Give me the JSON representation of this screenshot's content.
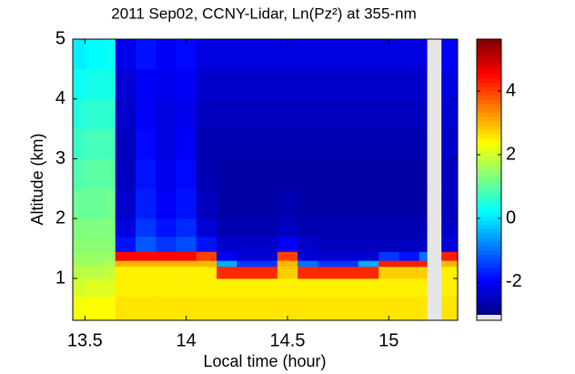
{
  "chart_data": {
    "type": "heatmap",
    "title": "2011 Sep02, CCNY-Lidar, Ln(Pz²) at 355-nm",
    "xlabel": "Local time (hour)",
    "ylabel": "Altitude (km)",
    "x_bins": [
      13.44,
      13.5,
      13.6,
      13.65,
      13.75,
      13.85,
      13.95,
      14.05,
      14.15,
      14.25,
      14.35,
      14.45,
      14.55,
      14.65,
      14.75,
      14.85,
      14.95,
      15.05,
      15.15,
      15.19,
      15.26,
      15.34
    ],
    "y_bins": [
      0.3,
      0.7,
      1.0,
      1.2,
      1.3,
      1.45,
      1.7,
      2,
      2.5,
      3,
      3.5,
      4,
      4.5,
      5
    ],
    "values": [
      [
        2.3,
        2.4,
        2.4,
        2.6,
        2.6,
        2.6,
        2.6,
        2.6,
        2.6,
        2.6,
        2.6,
        2.6,
        2.6,
        2.6,
        2.6,
        2.6,
        2.6,
        2.6,
        2.6,
        null,
        2.6
      ],
      [
        2.0,
        2.1,
        2.1,
        2.5,
        2.5,
        2.5,
        2.5,
        2.5,
        2.5,
        2.5,
        2.5,
        2.5,
        2.5,
        2.5,
        2.5,
        2.5,
        2.5,
        2.5,
        2.5,
        null,
        2.5
      ],
      [
        1.8,
        1.8,
        1.9,
        2.5,
        2.5,
        2.5,
        2.5,
        2.5,
        4.2,
        4.2,
        4.2,
        2.8,
        4.2,
        4.2,
        4.2,
        4.2,
        2.8,
        2.8,
        2.8,
        null,
        2.5
      ],
      [
        1.6,
        1.6,
        1.7,
        3.0,
        3.0,
        3.0,
        3.0,
        3.0,
        -0.5,
        -1.5,
        -1.5,
        3.0,
        -1.0,
        -1.5,
        -1.5,
        -0.5,
        4.3,
        4.3,
        4.3,
        null,
        3.0
      ],
      [
        1.5,
        1.5,
        1.5,
        4.5,
        4.5,
        4.5,
        4.5,
        4.0,
        -2.0,
        -2.3,
        -2.3,
        4.0,
        -2.3,
        -2.3,
        -2.3,
        -2.3,
        -1.5,
        -1.8,
        -1.0,
        null,
        4.3
      ],
      [
        1.4,
        1.4,
        1.4,
        -1.8,
        -1.2,
        -1.5,
        -1.3,
        -1.8,
        -2.4,
        -2.4,
        -2.4,
        -2.0,
        -2.4,
        -2.5,
        -2.5,
        -2.5,
        -2.5,
        -2.5,
        -2.5,
        null,
        -2.2
      ],
      [
        1.3,
        1.3,
        1.3,
        -2.2,
        -1.5,
        -1.8,
        -1.6,
        -2.3,
        -2.6,
        -2.6,
        -2.6,
        -2.5,
        -2.6,
        -2.6,
        -2.6,
        -2.6,
        -2.6,
        -2.6,
        -2.6,
        null,
        -2.4
      ],
      [
        1.1,
        1.1,
        1.2,
        -2.4,
        -1.7,
        -2.0,
        -1.8,
        -2.5,
        -2.7,
        -2.7,
        -2.7,
        -2.6,
        -2.7,
        -2.7,
        -2.7,
        -2.7,
        -2.7,
        -2.7,
        -2.7,
        null,
        -2.5
      ],
      [
        0.9,
        1.0,
        1.0,
        -2.5,
        -1.8,
        -2.1,
        -1.9,
        -2.6,
        -2.7,
        -2.7,
        -2.7,
        -2.7,
        -2.7,
        -2.7,
        -2.7,
        -2.7,
        -2.7,
        -2.7,
        -2.7,
        null,
        -2.5
      ],
      [
        0.7,
        0.8,
        0.8,
        -2.5,
        -1.9,
        -2.2,
        -2.0,
        -2.6,
        -2.6,
        -2.6,
        -2.6,
        -2.6,
        -2.6,
        -2.6,
        -2.6,
        -2.6,
        -2.6,
        -2.6,
        -2.6,
        null,
        -2.4
      ],
      [
        0.5,
        0.6,
        0.6,
        -2.4,
        -2.0,
        -2.2,
        -2.1,
        -2.5,
        -2.5,
        -2.5,
        -2.5,
        -2.5,
        -2.5,
        -2.5,
        -2.5,
        -2.5,
        -2.5,
        -2.5,
        -2.5,
        null,
        -2.3
      ],
      [
        0.3,
        0.4,
        0.4,
        -2.3,
        -2.0,
        -2.1,
        -2.0,
        -2.4,
        -2.4,
        -2.4,
        -2.4,
        -2.4,
        -2.4,
        -2.4,
        -2.4,
        -2.4,
        -2.4,
        -2.4,
        -2.4,
        null,
        -2.2
      ],
      [
        0.1,
        0.2,
        0.3,
        -2.1,
        -1.8,
        -2.0,
        -1.9,
        -2.2,
        -2.2,
        -2.2,
        -2.2,
        -2.2,
        -2.2,
        -2.2,
        -2.2,
        -2.2,
        -2.2,
        -2.2,
        -2.2,
        null,
        -2.0
      ]
    ],
    "xlim": [
      13.44,
      15.34
    ],
    "ylim": [
      0.3,
      5
    ],
    "xticks": [
      13.5,
      14,
      14.5,
      15
    ],
    "yticks": [
      1,
      2,
      3,
      4,
      5
    ],
    "clim": [
      -3.03,
      5.63
    ],
    "cticks": [
      -2,
      0,
      2,
      4
    ],
    "colormap": "jet",
    "null_color": "#e6e6e6"
  }
}
